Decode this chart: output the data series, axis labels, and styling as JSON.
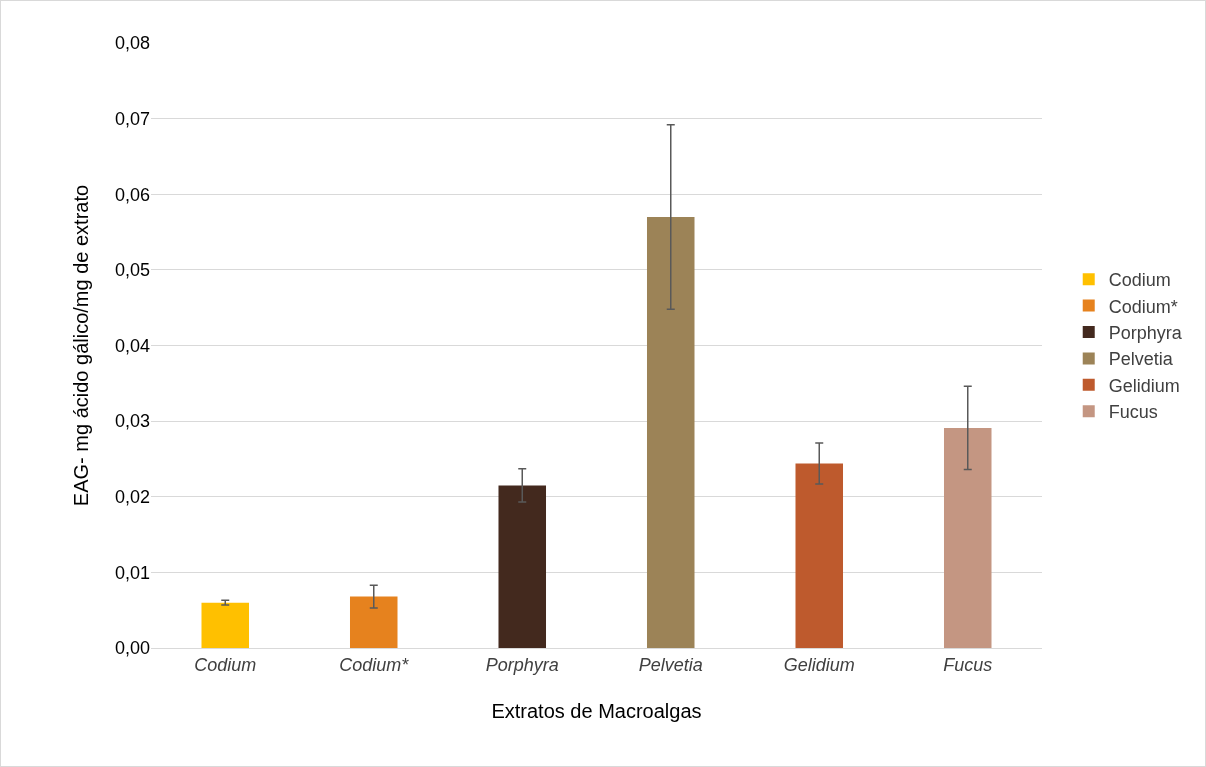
{
  "chart_data": {
    "type": "bar",
    "xlabel": "Extratos de Macroalgas",
    "ylabel": "EAG- mg ácido gálico/mg de extrato",
    "categories": [
      "Codium",
      "Codium*",
      "Porphyra",
      "Pelvetia",
      "Gelidium",
      "Fucus"
    ],
    "series": [
      {
        "name": "Codium",
        "color": "#ffc000",
        "values": [
          0.006,
          null,
          null,
          null,
          null,
          null
        ],
        "errors": [
          0.0003,
          null,
          null,
          null,
          null,
          null
        ]
      },
      {
        "name": "Codium*",
        "color": "#e6821e",
        "values": [
          null,
          0.0068,
          null,
          null,
          null,
          null
        ],
        "errors": [
          null,
          0.0015,
          null,
          null,
          null,
          null
        ]
      },
      {
        "name": "Porphyra",
        "color": "#43291e",
        "values": [
          null,
          null,
          0.0215,
          null,
          null,
          null
        ],
        "errors": [
          null,
          null,
          0.0022,
          null,
          null,
          null
        ]
      },
      {
        "name": "Pelvetia",
        "color": "#9c8357",
        "values": [
          null,
          null,
          null,
          0.057,
          null,
          null
        ],
        "errors": [
          null,
          null,
          null,
          0.0122,
          null,
          null
        ]
      },
      {
        "name": "Gelidium",
        "color": "#be5a2d",
        "values": [
          null,
          null,
          null,
          null,
          0.0244,
          null
        ],
        "errors": [
          null,
          null,
          null,
          null,
          0.0027,
          null
        ]
      },
      {
        "name": "Fucus",
        "color": "#c49682",
        "values": [
          null,
          null,
          null,
          null,
          null,
          0.0291
        ],
        "errors": [
          null,
          null,
          null,
          null,
          null,
          0.0055
        ]
      }
    ],
    "ylim": [
      0,
      0.08
    ],
    "yticks": [
      {
        "value": 0,
        "label": "0,00"
      },
      {
        "value": 0.01,
        "label": "0,01"
      },
      {
        "value": 0.02,
        "label": "0,02"
      },
      {
        "value": 0.03,
        "label": "0,03"
      },
      {
        "value": 0.04,
        "label": "0,04"
      },
      {
        "value": 0.05,
        "label": "0,05"
      },
      {
        "value": 0.06,
        "label": "0,06"
      },
      {
        "value": 0.07,
        "label": "0,07"
      },
      {
        "value": 0.08,
        "label": "0,08"
      }
    ],
    "grid": "y",
    "legend": "right"
  }
}
